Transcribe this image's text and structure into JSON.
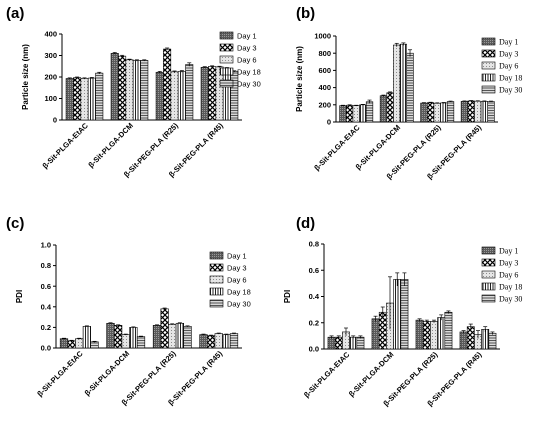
{
  "figure": {
    "panels": [
      {
        "letter": "(a)"
      },
      {
        "letter": "(b)"
      },
      {
        "letter": "(c)"
      },
      {
        "letter": "(d)"
      }
    ]
  },
  "colors": {
    "day1": "#7f7f7f",
    "day3": "#ffffff",
    "day6": "#c8c8c8",
    "day18": "#ffffff",
    "day30": "#a6a6a6",
    "axis": "#000000"
  },
  "chart_data": [
    {
      "type": "bar",
      "panel": "(a)",
      "ylabel": "Particle size (nm)",
      "ylim": [
        0,
        400
      ],
      "yticks": [
        0,
        100,
        200,
        300,
        400
      ],
      "categories": [
        "β-Sit-PLGA-EtAC",
        "β-Sit-PLGA-DCM",
        "β-Sit-PEG-PLA (R25)",
        "β-Sit-PEG-PLA (R45)"
      ],
      "series": [
        {
          "name": "Day 1",
          "values": [
            193,
            310,
            222,
            245
          ],
          "errors": [
            3,
            4,
            4,
            3
          ]
        },
        {
          "name": "Day 3",
          "values": [
            197,
            297,
            330,
            249
          ],
          "errors": [
            3,
            4,
            5,
            3
          ]
        },
        {
          "name": "Day 6",
          "values": [
            193,
            280,
            224,
            247
          ],
          "errors": [
            3,
            3,
            4,
            3
          ]
        },
        {
          "name": "Day 18",
          "values": [
            195,
            277,
            226,
            241
          ],
          "errors": [
            3,
            3,
            4,
            3
          ]
        },
        {
          "name": "Day 30",
          "values": [
            218,
            277,
            258,
            226
          ],
          "errors": [
            4,
            3,
            8,
            3
          ]
        }
      ],
      "legend_position": "right"
    },
    {
      "type": "bar",
      "panel": "(b)",
      "ylabel": "Particle size (nm)",
      "ylim": [
        0,
        1000
      ],
      "yticks": [
        0,
        200,
        400,
        600,
        800,
        1000
      ],
      "categories": [
        "β-Sit-PLGA-EtAC",
        "β-Sit-PLGA-DCM",
        "β-Sit-PEG-PLA (R25)",
        "β-Sit-PEG-PLA (R45)"
      ],
      "series": [
        {
          "name": "Day 1",
          "values": [
            190,
            305,
            220,
            240
          ],
          "errors": [
            5,
            8,
            5,
            5
          ]
        },
        {
          "name": "Day 3",
          "values": [
            195,
            340,
            225,
            245
          ],
          "errors": [
            5,
            10,
            5,
            5
          ]
        },
        {
          "name": "Day 6",
          "values": [
            190,
            895,
            218,
            242
          ],
          "errors": [
            5,
            20,
            5,
            5
          ]
        },
        {
          "name": "Day 18",
          "values": [
            200,
            905,
            222,
            240
          ],
          "errors": [
            5,
            15,
            5,
            5
          ]
        },
        {
          "name": "Day 30",
          "values": [
            235,
            800,
            238,
            238
          ],
          "errors": [
            20,
            40,
            5,
            5
          ]
        }
      ],
      "legend_position": "right"
    },
    {
      "type": "bar",
      "panel": "(c)",
      "ylabel": "PDI",
      "ylim": [
        0,
        1.0
      ],
      "yticks": [
        "0.0",
        "0.2",
        "0.4",
        "0.6",
        "0.8",
        "1.0"
      ],
      "categories": [
        "β-Sit-PLGA-EtAC",
        "β-Sit-PLGA-DCM",
        "β-Sit-PEG-PLA (R25)",
        "β-Sit-PEG-PLA (R45)"
      ],
      "series": [
        {
          "name": "Day 1",
          "values": [
            0.09,
            0.24,
            0.22,
            0.13
          ],
          "errors": [
            0.005,
            0.005,
            0.005,
            0.005
          ]
        },
        {
          "name": "Day 3",
          "values": [
            0.07,
            0.22,
            0.38,
            0.12
          ],
          "errors": [
            0.005,
            0.005,
            0.008,
            0.005
          ]
        },
        {
          "name": "Day 6",
          "values": [
            0.09,
            0.13,
            0.23,
            0.14
          ],
          "errors": [
            0.005,
            0.005,
            0.005,
            0.005
          ]
        },
        {
          "name": "Day 18",
          "values": [
            0.21,
            0.2,
            0.24,
            0.13
          ],
          "errors": [
            0.005,
            0.005,
            0.005,
            0.005
          ]
        },
        {
          "name": "Day 30",
          "values": [
            0.06,
            0.11,
            0.21,
            0.14
          ],
          "errors": [
            0.005,
            0.005,
            0.005,
            0.005
          ]
        }
      ],
      "legend_position": "right"
    },
    {
      "type": "bar",
      "panel": "(d)",
      "ylabel": "PDI",
      "ylim": [
        0,
        0.8
      ],
      "yticks": [
        "0.0",
        "0.2",
        "0.4",
        "0.6",
        "0.8"
      ],
      "categories": [
        "β-Sit-PLGA-EtAC",
        "β-Sit-PLGA-DCM",
        "β-Sit-PEG-PLA (R25)",
        "β-Sit-PEG-PLA (R45)"
      ],
      "series": [
        {
          "name": "Day 1",
          "values": [
            0.09,
            0.23,
            0.22,
            0.13
          ],
          "errors": [
            0.01,
            0.02,
            0.01,
            0.01
          ]
        },
        {
          "name": "Day 3",
          "values": [
            0.09,
            0.28,
            0.21,
            0.17
          ],
          "errors": [
            0.01,
            0.04,
            0.01,
            0.02
          ]
        },
        {
          "name": "Day 6",
          "values": [
            0.13,
            0.35,
            0.21,
            0.11
          ],
          "errors": [
            0.03,
            0.2,
            0.01,
            0.03
          ]
        },
        {
          "name": "Day 18",
          "values": [
            0.09,
            0.53,
            0.24,
            0.15
          ],
          "errors": [
            0.01,
            0.05,
            0.02,
            0.02
          ]
        },
        {
          "name": "Day 30",
          "values": [
            0.09,
            0.53,
            0.28,
            0.12
          ],
          "errors": [
            0.01,
            0.05,
            0.01,
            0.01
          ]
        }
      ],
      "legend_position": "right"
    }
  ]
}
